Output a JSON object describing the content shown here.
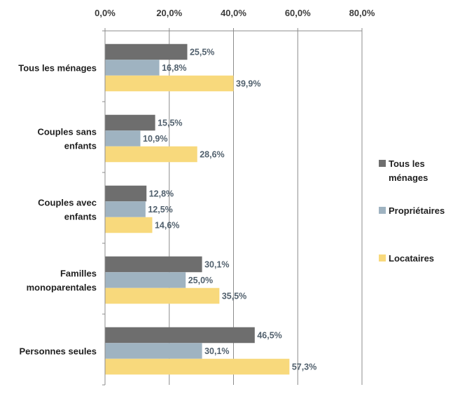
{
  "chart_data": {
    "type": "bar",
    "orientation": "horizontal",
    "categories": [
      [
        "Tous les ménages"
      ],
      [
        "Couples sans",
        "enfants"
      ],
      [
        "Couples avec",
        "enfants"
      ],
      [
        "Familles",
        "monoparentales"
      ],
      [
        "Personnes seules"
      ]
    ],
    "series": [
      {
        "name": "Tous les ménages",
        "legend_lines": [
          "Tous les",
          "ménages"
        ],
        "color": "#6e6e6e",
        "values": [
          25.5,
          15.5,
          12.8,
          30.1,
          46.5
        ],
        "labels": [
          "25,5%",
          "15,5%",
          "12,8%",
          "30,1%",
          "46,5%"
        ]
      },
      {
        "name": "Propriétaires",
        "legend_lines": [
          "Propriétaires"
        ],
        "color": "#9fb3c1",
        "values": [
          16.8,
          10.9,
          12.5,
          25.0,
          30.1
        ],
        "labels": [
          "16,8%",
          "10,9%",
          "12,5%",
          "25,0%",
          "30,1%"
        ]
      },
      {
        "name": "Locataires",
        "legend_lines": [
          "Locataires"
        ],
        "color": "#f8d97c",
        "values": [
          39.9,
          28.6,
          14.6,
          35.5,
          57.3
        ],
        "labels": [
          "39,9%",
          "28,6%",
          "14,6%",
          "35,5%",
          "57,3%"
        ]
      }
    ],
    "x_ticks": [
      0,
      20,
      40,
      60,
      80
    ],
    "x_tick_labels": [
      "0,0%",
      "20,0%",
      "40,0%",
      "60,0%",
      "80,0%"
    ],
    "xlim": [
      0,
      80
    ],
    "x_axis_position": "top",
    "grid": true,
    "legend_position": "right",
    "title": "",
    "xlabel": "",
    "ylabel": ""
  }
}
